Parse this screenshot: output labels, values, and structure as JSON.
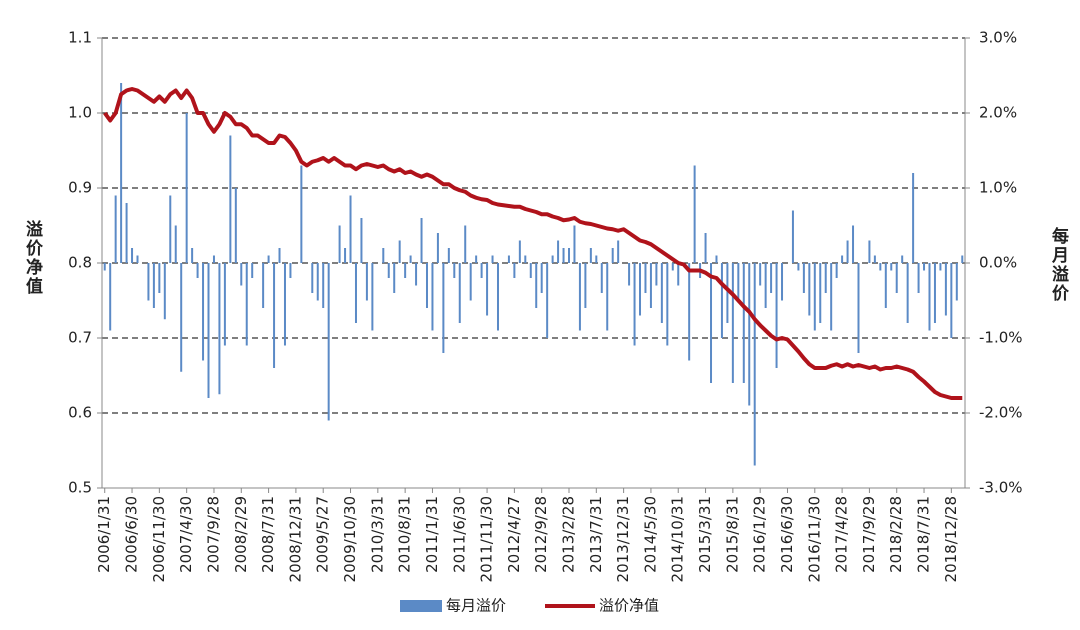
{
  "chart_data": {
    "type": "combo",
    "categories": [
      "2006/1/31",
      null,
      null,
      null,
      null,
      "2006/6/30",
      null,
      null,
      null,
      null,
      "2006/11/30",
      null,
      null,
      null,
      null,
      "2007/4/30",
      null,
      null,
      null,
      null,
      "2007/9/28",
      null,
      null,
      null,
      null,
      "2008/2/29",
      null,
      null,
      null,
      null,
      "2008/7/31",
      null,
      null,
      null,
      null,
      "2008/12/31",
      null,
      null,
      null,
      null,
      "2009/5/27",
      null,
      null,
      null,
      null,
      "2009/10/30",
      null,
      null,
      null,
      null,
      "2010/3/31",
      null,
      null,
      null,
      null,
      "2010/8/31",
      null,
      null,
      null,
      null,
      "2011/1/31",
      null,
      null,
      null,
      null,
      "2011/6/30",
      null,
      null,
      null,
      null,
      "2011/11/30",
      null,
      null,
      null,
      null,
      "2012/4/27",
      null,
      null,
      null,
      null,
      "2012/9/28",
      null,
      null,
      null,
      null,
      "2013/2/28",
      null,
      null,
      null,
      null,
      "2013/7/31",
      null,
      null,
      null,
      null,
      "2013/12/31",
      null,
      null,
      null,
      null,
      "2014/5/30",
      null,
      null,
      null,
      null,
      "2014/10/31",
      null,
      null,
      null,
      null,
      "2015/3/31",
      null,
      null,
      null,
      null,
      "2015/8/31",
      null,
      null,
      null,
      null,
      "2016/1/29",
      null,
      null,
      null,
      null,
      "2016/6/30",
      null,
      null,
      null,
      null,
      "2016/11/30",
      null,
      null,
      null,
      null,
      "2017/4/28",
      null,
      null,
      null,
      null,
      "2017/9/29",
      null,
      null,
      null,
      null,
      "2018/2/28",
      null,
      null,
      null,
      null,
      "2018/7/31",
      null,
      null,
      null,
      null,
      "2018/12/28",
      null,
      null
    ],
    "series": [
      {
        "name": "每月溢价",
        "type": "bar",
        "axis": "y2",
        "color": "#5b8ac6",
        "values": [
          -0.1,
          -0.9,
          0.9,
          2.4,
          0.8,
          0.2,
          0.1,
          0.0,
          -0.5,
          -0.6,
          -0.4,
          -0.75,
          0.9,
          0.5,
          -1.45,
          2.0,
          0.2,
          -0.2,
          -1.3,
          -1.8,
          0.1,
          -1.75,
          -1.1,
          1.7,
          1.0,
          -0.3,
          -1.1,
          -0.2,
          0.0,
          -0.6,
          0.1,
          -1.4,
          0.2,
          -1.1,
          -0.2,
          0.0,
          1.3,
          0.0,
          -0.4,
          -0.5,
          -0.6,
          -2.1,
          0.0,
          0.5,
          0.2,
          0.9,
          -0.8,
          0.6,
          -0.5,
          -0.9,
          0.0,
          0.2,
          -0.2,
          -0.4,
          0.3,
          -0.2,
          0.1,
          -0.3,
          0.6,
          -0.6,
          -0.9,
          0.4,
          -1.2,
          0.2,
          -0.2,
          -0.8,
          0.5,
          -0.5,
          0.1,
          -0.2,
          -0.7,
          0.1,
          -0.9,
          0.0,
          0.1,
          -0.2,
          0.3,
          0.1,
          -0.2,
          -0.6,
          -0.4,
          -1.0,
          0.1,
          0.3,
          0.2,
          0.2,
          0.5,
          -0.9,
          -0.6,
          0.2,
          0.1,
          -0.4,
          -0.9,
          0.2,
          0.3,
          0.0,
          -0.3,
          -1.1,
          -0.7,
          -0.4,
          -0.6,
          -0.3,
          -0.8,
          -1.1,
          -0.1,
          -0.3,
          0.0,
          -1.3,
          1.3,
          -0.2,
          0.4,
          -1.6,
          0.1,
          -1.0,
          -0.8,
          -1.6,
          -0.5,
          -1.6,
          -1.9,
          -2.7,
          -0.3,
          -0.6,
          -0.4,
          -1.4,
          -0.5,
          0.0,
          0.7,
          -0.1,
          -0.4,
          -0.7,
          -0.9,
          -0.8,
          -0.4,
          -0.9,
          -0.2,
          0.1,
          0.3,
          0.5,
          -1.2,
          0.0,
          0.3,
          0.1,
          -0.1,
          -0.6,
          -0.1,
          -0.4,
          0.1,
          -0.8,
          1.2,
          -0.4,
          -0.1,
          -0.9,
          -0.8,
          -0.1,
          -0.7,
          -1.0,
          -0.5,
          0.1
        ]
      },
      {
        "name": "溢价净值",
        "type": "line",
        "axis": "y",
        "color": "#b0131b",
        "values": [
          1.0,
          0.99,
          1.0,
          1.025,
          1.03,
          1.032,
          1.03,
          1.025,
          1.02,
          1.015,
          1.022,
          1.015,
          1.025,
          1.03,
          1.02,
          1.03,
          1.02,
          1.0,
          1.0,
          0.985,
          0.975,
          0.985,
          1.0,
          0.995,
          0.985,
          0.985,
          0.98,
          0.97,
          0.97,
          0.965,
          0.96,
          0.96,
          0.97,
          0.968,
          0.96,
          0.95,
          0.935,
          0.93,
          0.935,
          0.937,
          0.94,
          0.935,
          0.94,
          0.935,
          0.93,
          0.93,
          0.925,
          0.93,
          0.932,
          0.93,
          0.928,
          0.93,
          0.925,
          0.922,
          0.925,
          0.92,
          0.922,
          0.918,
          0.915,
          0.918,
          0.915,
          0.91,
          0.905,
          0.905,
          0.9,
          0.897,
          0.895,
          0.89,
          0.887,
          0.885,
          0.884,
          0.88,
          0.878,
          0.877,
          0.876,
          0.875,
          0.875,
          0.872,
          0.87,
          0.868,
          0.865,
          0.865,
          0.862,
          0.86,
          0.857,
          0.858,
          0.86,
          0.855,
          0.853,
          0.852,
          0.85,
          0.848,
          0.846,
          0.845,
          0.843,
          0.845,
          0.84,
          0.835,
          0.83,
          0.828,
          0.825,
          0.82,
          0.815,
          0.81,
          0.805,
          0.8,
          0.798,
          0.79,
          0.79,
          0.79,
          0.787,
          0.782,
          0.78,
          0.772,
          0.765,
          0.758,
          0.75,
          0.742,
          0.735,
          0.725,
          0.717,
          0.71,
          0.703,
          0.698,
          0.7,
          0.698,
          0.69,
          0.682,
          0.673,
          0.665,
          0.66,
          0.66,
          0.66,
          0.663,
          0.665,
          0.662,
          0.665,
          0.662,
          0.664,
          0.662,
          0.66,
          0.662,
          0.658,
          0.66,
          0.66,
          0.662,
          0.66,
          0.658,
          0.655,
          0.648,
          0.642,
          0.635,
          0.628,
          0.624,
          0.622,
          0.62,
          0.62,
          0.62
        ]
      }
    ],
    "y_label": "溢价净值",
    "y2_label": "每月溢价",
    "ylim": [
      0.5,
      1.1
    ],
    "yticks": [
      0.5,
      0.6,
      0.7,
      0.8,
      0.9,
      {
        "value": 1,
        "label": "1.0"
      },
      1.1
    ],
    "y2lim": [
      -3,
      3
    ],
    "y2ticks": [
      {
        "value": -3,
        "label": "-3.0%"
      },
      {
        "value": -2,
        "label": "-2.0%"
      },
      {
        "value": -1,
        "label": "-1.0%"
      },
      {
        "value": 0,
        "label": "0.0%"
      },
      {
        "value": 1,
        "label": "1.0%"
      },
      {
        "value": 2,
        "label": "2.0%"
      },
      {
        "value": 3,
        "label": "3.0%"
      }
    ],
    "grid": true,
    "legend": "bottom"
  }
}
